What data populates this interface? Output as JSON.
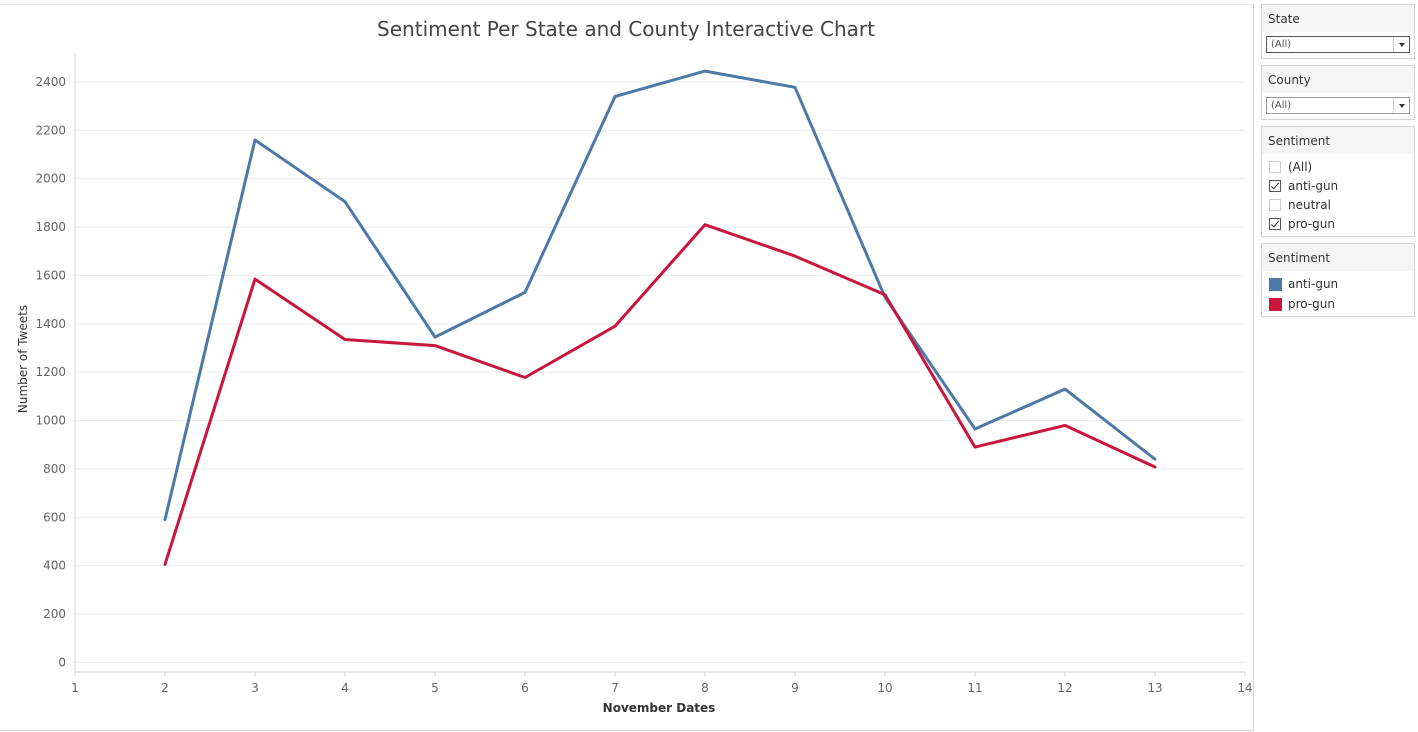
{
  "filters": {
    "state": {
      "title": "State",
      "selected": "(All)"
    },
    "county": {
      "title": "County",
      "selected": "(All)"
    },
    "sentiment": {
      "title": "Sentiment",
      "options": [
        {
          "label": "(All)",
          "checked": false
        },
        {
          "label": "anti-gun",
          "checked": true
        },
        {
          "label": "neutral",
          "checked": false
        },
        {
          "label": "pro-gun",
          "checked": true
        }
      ]
    }
  },
  "legend": {
    "title": "Sentiment",
    "items": [
      {
        "label": "anti-gun",
        "color": "#4e79a7"
      },
      {
        "label": "pro-gun",
        "color": "#c8163d"
      }
    ]
  },
  "chart_data": {
    "type": "line",
    "title": "Sentiment Per State and County Interactive Chart",
    "xlabel": "November Dates",
    "ylabel": "Number of Tweets",
    "xlim": [
      1,
      14
    ],
    "ylim": [
      -40,
      2520
    ],
    "xticks": [
      1,
      2,
      3,
      4,
      5,
      6,
      7,
      8,
      9,
      10,
      11,
      12,
      13,
      14
    ],
    "yticks": [
      0,
      200,
      400,
      600,
      800,
      1000,
      1200,
      1400,
      1600,
      1800,
      2000,
      2200,
      2400
    ],
    "grid": true,
    "x": [
      2,
      3,
      4,
      5,
      6,
      7,
      8,
      9,
      10,
      11,
      12,
      13
    ],
    "series": [
      {
        "name": "anti-gun",
        "color": "#4e79a7",
        "values": [
          590,
          2160,
          1905,
          1345,
          1530,
          2340,
          2445,
          2378,
          1510,
          965,
          1130,
          840
        ]
      },
      {
        "name": "pro-gun",
        "color": "#c8163d",
        "values": [
          405,
          1585,
          1335,
          1310,
          1178,
          1390,
          1810,
          1680,
          1520,
          890,
          980,
          808
        ]
      }
    ]
  }
}
